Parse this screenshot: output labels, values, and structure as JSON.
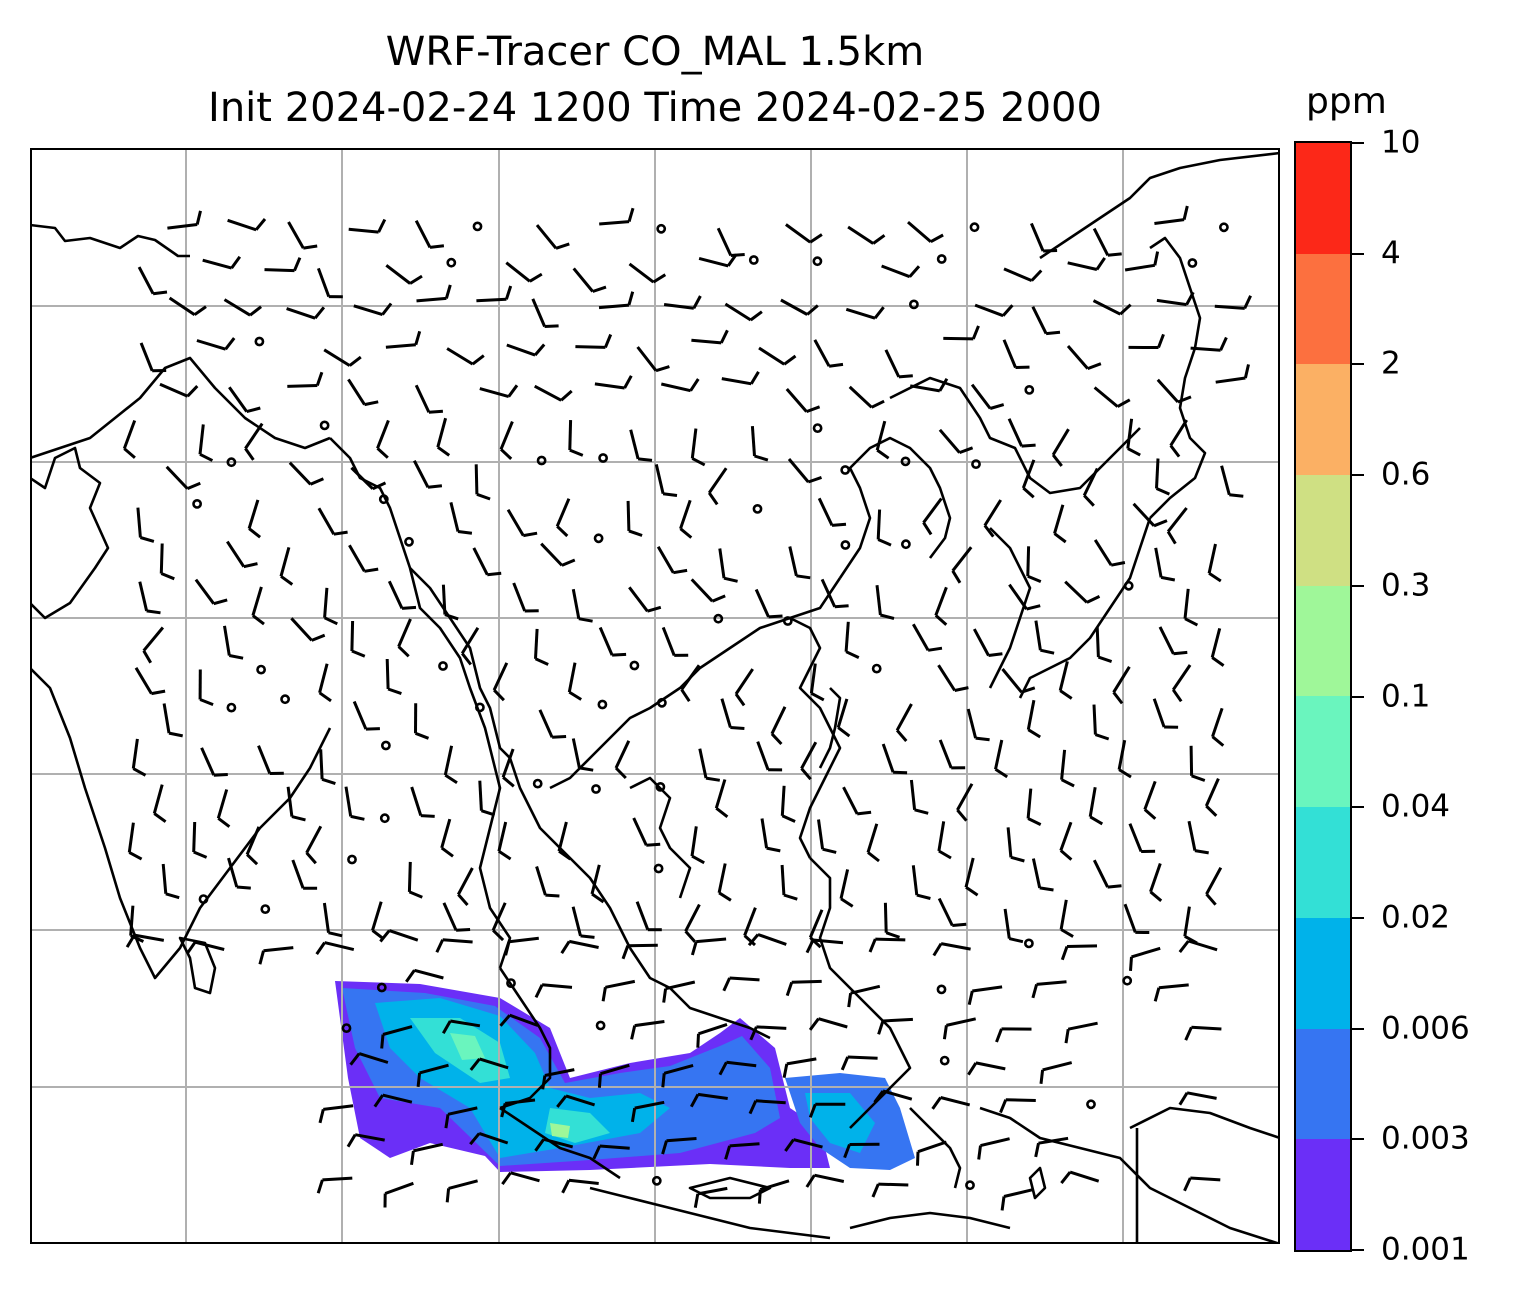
{
  "title": {
    "line1": "WRF-Tracer CO_MAL 1.5km",
    "line2": "Init 2024-02-24 1200 Time 2024-02-25 2000"
  },
  "map": {
    "description_type": "wind barbs over East and Southeast Asia with CO tracer concentration shading",
    "gridlines": true,
    "coastlines": true,
    "field_name": "CO_MAL tracer",
    "wind_symbol": "barbs",
    "shaded_region": "Peninsular Malaysia, Sumatra and western Borneo"
  },
  "colorbar": {
    "unit": "ppm",
    "orientation": "vertical",
    "position": "right",
    "levels": [
      "0.001",
      "0.003",
      "0.006",
      "0.02",
      "0.04",
      "0.1",
      "0.3",
      "0.6",
      "2",
      "4",
      "10"
    ],
    "colors": [
      "#6b2ff7",
      "#3675f2",
      "#00b2ea",
      "#33e0d6",
      "#6af5be",
      "#9ff799",
      "#cfe083",
      "#fbb064",
      "#fc703f",
      "#fc2818"
    ]
  }
}
